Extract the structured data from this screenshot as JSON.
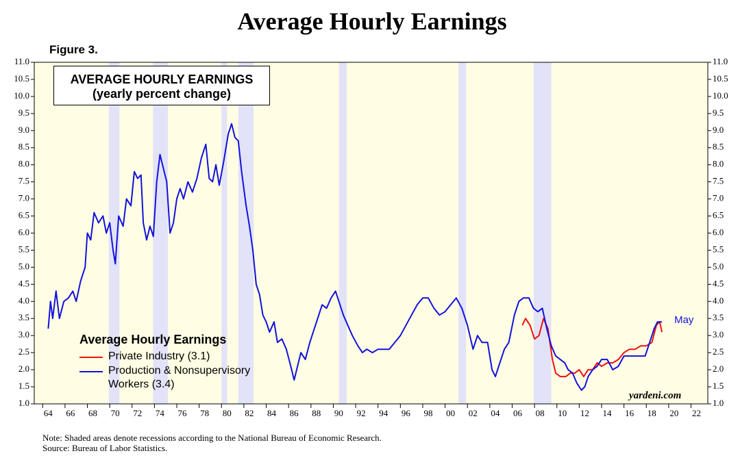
{
  "chart_data": {
    "type": "line",
    "title": "Average Hourly Earnings",
    "figure_label": "Figure 3.",
    "box_title": "AVERAGE HOURLY EARNINGS",
    "box_subtitle": "(yearly percent change)",
    "legend_title": "Average Hourly Earnings",
    "annotation": "May",
    "watermark": "yardeni.com",
    "notes": [
      "Note: Shaded areas denote recessions according to the National Bureau of Economic Research.",
      "Source: Bureau of Labor Statistics."
    ],
    "xlim": [
      1963.25,
      2023.5
    ],
    "ylim": [
      1,
      11
    ],
    "y2lim": [
      1,
      11
    ],
    "xticks": [
      {
        "value": 1964,
        "label": "64"
      },
      {
        "value": 1966,
        "label": "66"
      },
      {
        "value": 1968,
        "label": "68"
      },
      {
        "value": 1970,
        "label": "70"
      },
      {
        "value": 1972,
        "label": "72"
      },
      {
        "value": 1974,
        "label": "74"
      },
      {
        "value": 1976,
        "label": "76"
      },
      {
        "value": 1978,
        "label": "78"
      },
      {
        "value": 1980,
        "label": "80"
      },
      {
        "value": 1982,
        "label": "82"
      },
      {
        "value": 1984,
        "label": "84"
      },
      {
        "value": 1986,
        "label": "86"
      },
      {
        "value": 1988,
        "label": "88"
      },
      {
        "value": 1990,
        "label": "90"
      },
      {
        "value": 1992,
        "label": "92"
      },
      {
        "value": 1994,
        "label": "94"
      },
      {
        "value": 1996,
        "label": "96"
      },
      {
        "value": 1998,
        "label": "98"
      },
      {
        "value": 2000,
        "label": "00"
      },
      {
        "value": 2002,
        "label": "02"
      },
      {
        "value": 2004,
        "label": "04"
      },
      {
        "value": 2006,
        "label": "06"
      },
      {
        "value": 2008,
        "label": "08"
      },
      {
        "value": 2010,
        "label": "10"
      },
      {
        "value": 2012,
        "label": "12"
      },
      {
        "value": 2014,
        "label": "14"
      },
      {
        "value": 2016,
        "label": "16"
      },
      {
        "value": 2018,
        "label": "18"
      },
      {
        "value": 2020,
        "label": "20"
      },
      {
        "value": 2022,
        "label": "22"
      }
    ],
    "yticks": [
      {
        "value": 1,
        "label": "1.0"
      },
      {
        "value": 1.5,
        "label": "1.5"
      },
      {
        "value": 2,
        "label": "2.0"
      },
      {
        "value": 2.5,
        "label": "2.5"
      },
      {
        "value": 3,
        "label": "3.0"
      },
      {
        "value": 3.5,
        "label": "3.5"
      },
      {
        "value": 4,
        "label": "4.0"
      },
      {
        "value": 4.5,
        "label": "4.5"
      },
      {
        "value": 5,
        "label": "5.0"
      },
      {
        "value": 5.5,
        "label": "5.5"
      },
      {
        "value": 6,
        "label": "6.0"
      },
      {
        "value": 6.5,
        "label": "6.5"
      },
      {
        "value": 7,
        "label": "7.0"
      },
      {
        "value": 7.5,
        "label": "7.5"
      },
      {
        "value": 8,
        "label": "8.0"
      },
      {
        "value": 8.5,
        "label": "8.5"
      },
      {
        "value": 9,
        "label": "9.0"
      },
      {
        "value": 9.5,
        "label": "9.5"
      },
      {
        "value": 10,
        "label": "10.0"
      },
      {
        "value": 10.5,
        "label": "10.5"
      },
      {
        "value": 11,
        "label": "11.0"
      }
    ],
    "y2ticks": [
      {
        "value": 1,
        "label": "1.0"
      },
      {
        "value": 1.5,
        "label": "1.5"
      },
      {
        "value": 2,
        "label": "2.0"
      },
      {
        "value": 2.5,
        "label": "2.5"
      },
      {
        "value": 3,
        "label": "3.0"
      },
      {
        "value": 3.5,
        "label": "3.5"
      },
      {
        "value": 4,
        "label": "4.0"
      },
      {
        "value": 4.5,
        "label": "4.5"
      },
      {
        "value": 5,
        "label": "5.0"
      },
      {
        "value": 5.5,
        "label": "5.5"
      },
      {
        "value": 6,
        "label": "6.0"
      },
      {
        "value": 6.5,
        "label": "6.5"
      },
      {
        "value": 7,
        "label": "7.0"
      },
      {
        "value": 7.5,
        "label": "7.5"
      },
      {
        "value": 8,
        "label": "8.0"
      },
      {
        "value": 8.5,
        "label": "8.5"
      },
      {
        "value": 9,
        "label": "9.0"
      },
      {
        "value": 9.5,
        "label": "9.5"
      },
      {
        "value": 10,
        "label": "10.0"
      },
      {
        "value": 10.5,
        "label": "10.5"
      },
      {
        "value": 11,
        "label": "11.0"
      }
    ],
    "recessions": [
      [
        1969.92,
        1970.87
      ],
      [
        1973.87,
        1975.2
      ],
      [
        1980.0,
        1980.5
      ],
      [
        1981.5,
        1982.87
      ],
      [
        1990.5,
        1991.2
      ],
      [
        2001.2,
        2001.87
      ],
      [
        2007.92,
        2009.5
      ]
    ],
    "plot_background": "#fffde3",
    "recession_color": "#e2e2f8",
    "series": [
      {
        "name": "Private Industry (3.1)",
        "color": "#ee1111",
        "x": [
          2006.9,
          2007.2,
          2007.6,
          2008.0,
          2008.4,
          2008.8,
          2009.2,
          2009.6,
          2009.9,
          2010.3,
          2010.8,
          2011.2,
          2011.6,
          2012.0,
          2012.4,
          2012.8,
          2013.2,
          2013.6,
          2014.0,
          2014.5,
          2015.0,
          2015.5,
          2016.0,
          2016.5,
          2017.0,
          2017.5,
          2018.0,
          2018.5,
          2018.9,
          2019.2,
          2019.4
        ],
        "values": [
          3.3,
          3.5,
          3.3,
          2.9,
          3.0,
          3.5,
          3.2,
          2.3,
          1.9,
          1.8,
          1.8,
          1.9,
          1.9,
          2.0,
          1.8,
          2.0,
          2.0,
          2.2,
          2.1,
          2.2,
          2.2,
          2.3,
          2.5,
          2.6,
          2.6,
          2.7,
          2.7,
          2.8,
          3.3,
          3.4,
          3.1
        ]
      },
      {
        "name": "Production & Nonsupervisory Workers (3.4)",
        "color": "#1111dd",
        "x": [
          1964.5,
          1964.7,
          1964.9,
          1965.2,
          1965.5,
          1965.9,
          1966.3,
          1966.7,
          1967.0,
          1967.4,
          1967.8,
          1968.0,
          1968.3,
          1968.6,
          1969.0,
          1969.4,
          1969.7,
          1970.0,
          1970.3,
          1970.5,
          1970.8,
          1971.2,
          1971.5,
          1971.9,
          1972.2,
          1972.5,
          1972.8,
          1973.0,
          1973.3,
          1973.6,
          1973.9,
          1974.2,
          1974.5,
          1974.8,
          1975.1,
          1975.4,
          1975.7,
          1976.0,
          1976.3,
          1976.6,
          1977.0,
          1977.4,
          1977.8,
          1978.2,
          1978.6,
          1978.9,
          1979.2,
          1979.5,
          1979.8,
          1980.2,
          1980.6,
          1980.9,
          1981.2,
          1981.5,
          1981.8,
          1982.2,
          1982.5,
          1982.8,
          1983.1,
          1983.4,
          1983.7,
          1984.0,
          1984.3,
          1984.7,
          1985.0,
          1985.4,
          1985.8,
          1986.2,
          1986.5,
          1986.8,
          1987.1,
          1987.5,
          1987.9,
          1988.3,
          1988.6,
          1989.0,
          1989.4,
          1989.8,
          1990.2,
          1990.5,
          1990.9,
          1991.3,
          1991.7,
          1992.2,
          1992.6,
          1993.0,
          1993.5,
          1994.0,
          1994.5,
          1995.0,
          1995.5,
          1996.0,
          1996.5,
          1997.0,
          1997.5,
          1998.0,
          1998.5,
          1999.0,
          1999.5,
          2000.0,
          2000.5,
          2001.0,
          2001.5,
          2002.0,
          2002.5,
          2002.9,
          2003.3,
          2003.8,
          2004.2,
          2004.5,
          2004.9,
          2005.3,
          2005.7,
          2006.2,
          2006.6,
          2007.0,
          2007.5,
          2007.9,
          2008.3,
          2008.7,
          2009.1,
          2009.5,
          2009.9,
          2010.3,
          2010.7,
          2011.0,
          2011.4,
          2011.8,
          2012.2,
          2012.5,
          2012.8,
          2013.2,
          2013.6,
          2014.0,
          2014.5,
          2015.0,
          2015.5,
          2016.0,
          2016.5,
          2017.0,
          2017.5,
          2017.9,
          2018.3,
          2018.7,
          2019.0,
          2019.4
        ],
        "values": [
          3.2,
          4.0,
          3.5,
          4.3,
          3.5,
          4.0,
          4.1,
          4.3,
          4.0,
          4.6,
          5.0,
          6.0,
          5.8,
          6.6,
          6.3,
          6.5,
          6.0,
          6.3,
          5.5,
          5.1,
          6.5,
          6.2,
          7.0,
          6.8,
          7.8,
          7.6,
          7.7,
          6.3,
          5.8,
          6.2,
          5.9,
          7.5,
          8.3,
          7.9,
          7.5,
          6.0,
          6.3,
          7.0,
          7.3,
          7.0,
          7.5,
          7.2,
          7.6,
          8.2,
          8.6,
          7.6,
          7.5,
          8.0,
          7.4,
          8.1,
          8.9,
          9.2,
          8.8,
          8.7,
          7.8,
          6.8,
          6.2,
          5.5,
          4.5,
          4.2,
          3.6,
          3.4,
          3.1,
          3.4,
          2.8,
          2.9,
          2.6,
          2.1,
          1.7,
          2.1,
          2.5,
          2.3,
          2.8,
          3.2,
          3.5,
          3.9,
          3.8,
          4.1,
          4.3,
          4.0,
          3.6,
          3.3,
          3.0,
          2.7,
          2.5,
          2.6,
          2.5,
          2.6,
          2.6,
          2.6,
          2.8,
          3.0,
          3.3,
          3.6,
          3.9,
          4.1,
          4.1,
          3.8,
          3.6,
          3.7,
          3.9,
          4.1,
          3.8,
          3.3,
          2.6,
          3.0,
          2.8,
          2.8,
          2.0,
          1.8,
          2.2,
          2.6,
          2.8,
          3.6,
          4.0,
          4.1,
          4.1,
          3.8,
          3.7,
          3.8,
          3.2,
          2.7,
          2.4,
          2.3,
          2.2,
          2.0,
          1.9,
          1.6,
          1.4,
          1.5,
          1.8,
          2.0,
          2.1,
          2.3,
          2.3,
          2.0,
          2.1,
          2.4,
          2.4,
          2.4,
          2.4,
          2.4,
          2.8,
          3.2,
          3.4,
          3.4
        ]
      }
    ]
  }
}
